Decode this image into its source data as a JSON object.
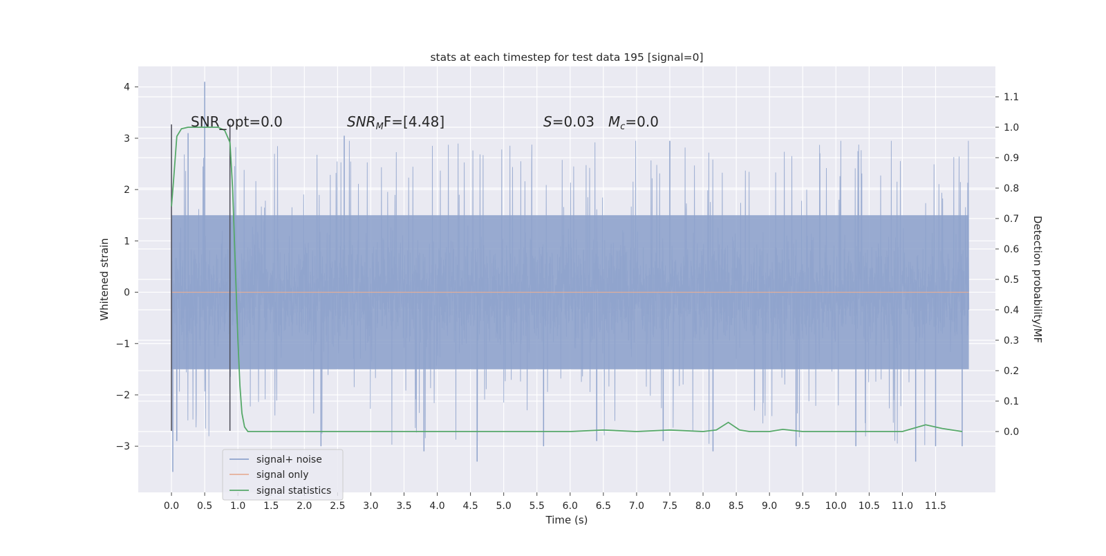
{
  "chart_data": {
    "type": "line",
    "title": "stats at each timestep for test data 195 [signal=0]",
    "xlabel": "Time (s)",
    "ylabel": "Whitened strain",
    "y2label": "Detection probability/MF",
    "xlim": [
      -0.5,
      12.4
    ],
    "ylim": [
      -3.9,
      4.4
    ],
    "y2lim": [
      -0.2,
      1.2
    ],
    "x_ticks": [
      0.0,
      0.5,
      1.0,
      1.5,
      2.0,
      2.5,
      3.0,
      3.5,
      4.0,
      4.5,
      5.0,
      5.5,
      6.0,
      6.5,
      7.0,
      7.5,
      8.0,
      8.5,
      9.0,
      9.5,
      10.0,
      10.5,
      11.0,
      11.5
    ],
    "x_tick_labels": [
      "0.0",
      "0.5",
      "1.0",
      "1.5",
      "2.0",
      "2.5",
      "3.0",
      "3.5",
      "4.0",
      "4.5",
      "5.0",
      "5.5",
      "6.0",
      "6.5",
      "7.0",
      "7.5",
      "8.0",
      "8.5",
      "9.0",
      "9.5",
      "10.0",
      "10.5",
      "11.0",
      "11.5"
    ],
    "y_ticks": [
      -3,
      -2,
      -1,
      0,
      1,
      2,
      3,
      4
    ],
    "y_tick_labels": [
      "−3",
      "−2",
      "−1",
      "0",
      "1",
      "2",
      "3",
      "4"
    ],
    "y2_ticks": [
      0.0,
      0.1,
      0.2,
      0.3,
      0.4,
      0.5,
      0.6,
      0.7,
      0.8,
      0.9,
      1.0,
      1.1
    ],
    "y2_tick_labels": [
      "0.0",
      "0.1",
      "0.2",
      "0.3",
      "0.4",
      "0.5",
      "0.6",
      "0.7",
      "0.8",
      "0.9",
      "1.0",
      "1.1"
    ],
    "grid": true,
    "legend_position": "lower-left",
    "annotations": {
      "snr_opt": "SNR_opt=0.0",
      "snr_mf_main": "SNR",
      "snr_mf_sub": "M",
      "snr_mf_rest": "F=[4.48]",
      "s_main": "S",
      "s_rest": "=0.03",
      "mc_main": "M",
      "mc_sub": "c",
      "mc_rest": "=0.0"
    },
    "markers": [
      {
        "x": 0.0,
        "y_range": [
          -2.7,
          3.27
        ]
      },
      {
        "x": 0.88,
        "y_range": [
          -2.7,
          3.27
        ]
      }
    ],
    "series": [
      {
        "name": "signal+ noise",
        "color": "#8fa3cc",
        "axis": "left",
        "x_range": [
          0.0,
          12.0
        ],
        "envelope_core": [
          -1.5,
          1.5
        ],
        "outliers": [
          [
            0.02,
            -3.5
          ],
          [
            0.08,
            -2.9
          ],
          [
            0.5,
            4.1
          ],
          [
            0.25,
            3.1
          ],
          [
            2.25,
            -3.0
          ],
          [
            2.6,
            3.05
          ],
          [
            3.8,
            -3.1
          ],
          [
            4.6,
            -3.3
          ],
          [
            5.6,
            -3.0
          ],
          [
            6.4,
            -2.9
          ],
          [
            7.4,
            -2.9
          ],
          [
            7.5,
            2.95
          ],
          [
            8.15,
            -3.1
          ],
          [
            9.4,
            -3.0
          ],
          [
            10.3,
            -3.0
          ],
          [
            11.2,
            -3.3
          ],
          [
            11.5,
            -3.0
          ],
          [
            11.9,
            -3.0
          ]
        ]
      },
      {
        "name": "signal only",
        "color": "#e5ae98",
        "axis": "left",
        "x": [
          0.0,
          12.0
        ],
        "y": [
          0.0,
          0.0
        ]
      },
      {
        "name": "signal statistics",
        "color": "#55a868",
        "axis": "right",
        "x": [
          0.0,
          0.03,
          0.08,
          0.15,
          0.25,
          0.4,
          0.6,
          0.7,
          0.8,
          0.88,
          0.92,
          0.96,
          1.0,
          1.03,
          1.06,
          1.1,
          1.15,
          1.3,
          2.0,
          3.0,
          4.0,
          5.0,
          6.0,
          6.5,
          7.0,
          7.5,
          8.0,
          8.2,
          8.38,
          8.55,
          8.7,
          9.0,
          9.2,
          9.5,
          10.0,
          11.0,
          11.35,
          11.6,
          11.9
        ],
        "y": [
          0.74,
          0.82,
          0.97,
          0.995,
          1.0,
          1.0,
          1.0,
          1.0,
          0.99,
          0.95,
          0.8,
          0.55,
          0.3,
          0.15,
          0.06,
          0.015,
          0.0,
          0.0,
          0.0,
          0.0,
          0.0,
          0.0,
          0.0,
          0.005,
          0.0,
          0.005,
          0.0,
          0.005,
          0.03,
          0.005,
          0.0,
          0.0,
          0.007,
          0.0,
          0.0,
          0.0,
          0.022,
          0.01,
          0.0
        ]
      }
    ]
  }
}
